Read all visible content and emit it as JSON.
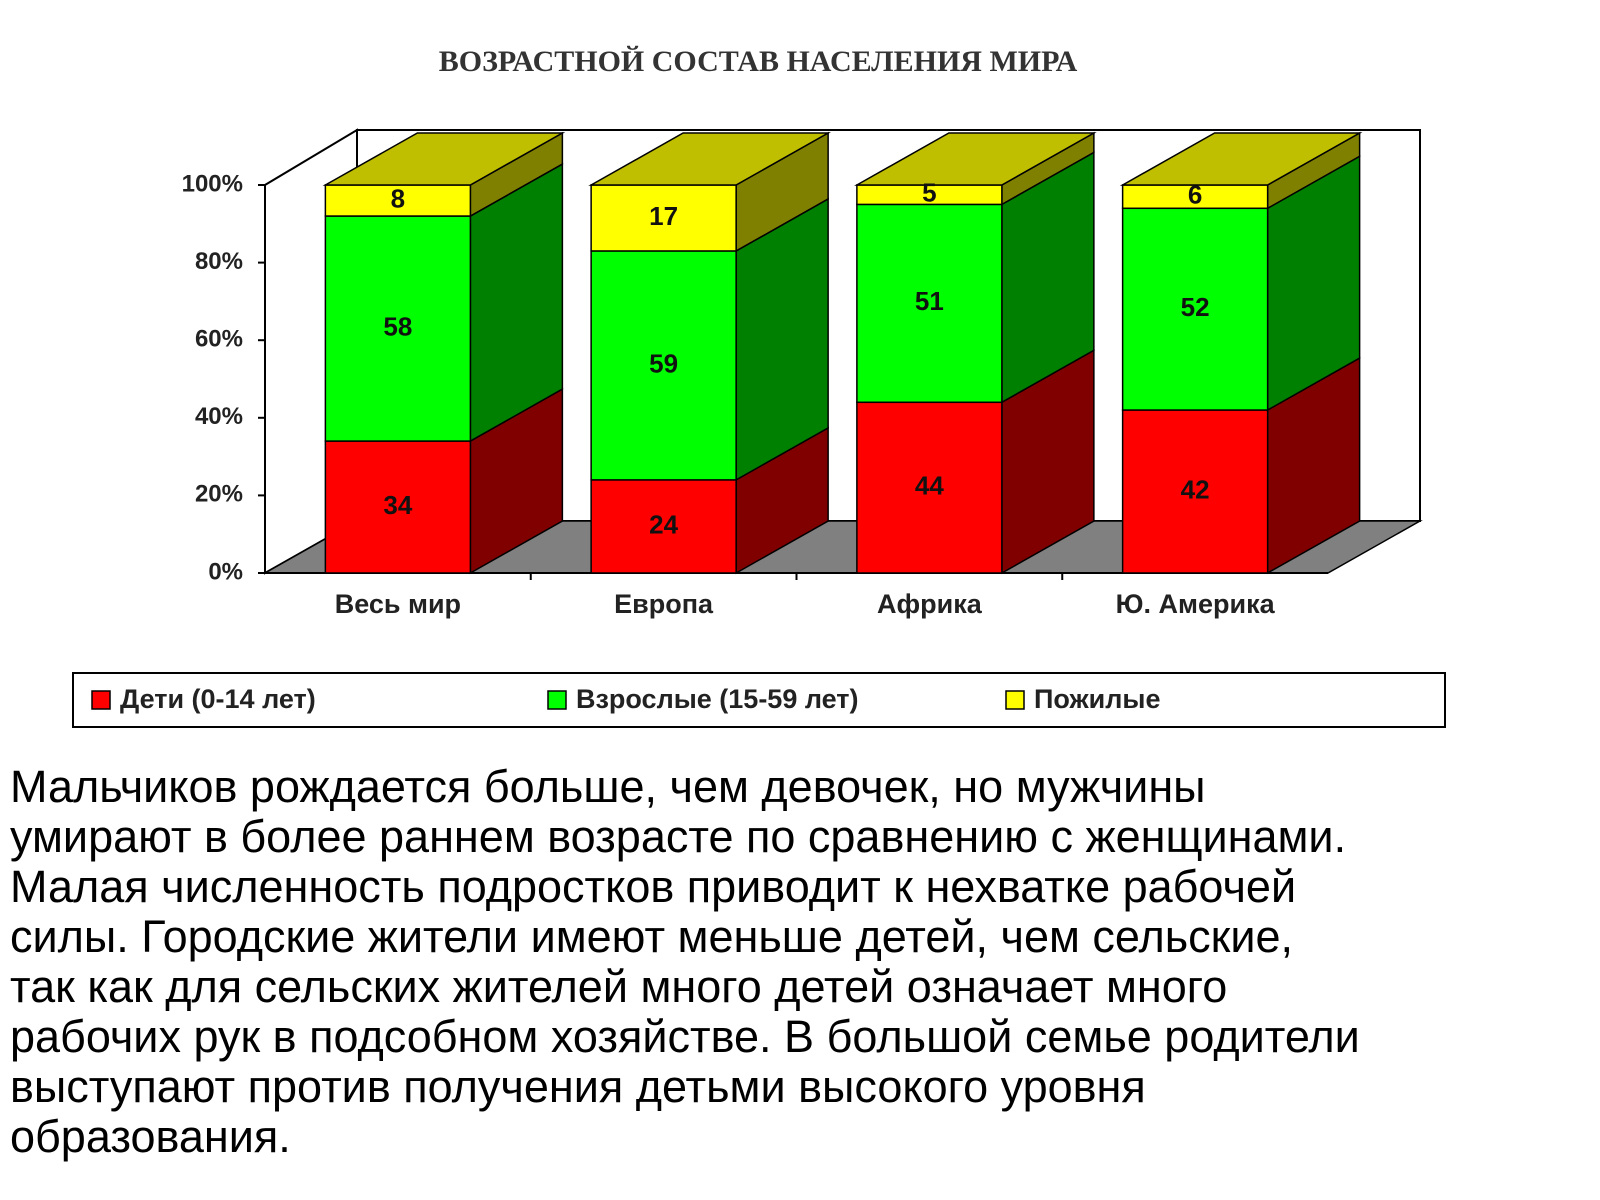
{
  "chart_data": {
    "type": "bar",
    "stacked": true,
    "three_d": true,
    "title": "ВОЗРАСТНОЙ СОСТАВ НАСЕЛЕНИЯ МИРА",
    "categories": [
      "Весь мир",
      "Европа",
      "Африка",
      "Ю. Америка"
    ],
    "series": [
      {
        "name": "Дети (0-14 лет)",
        "color": "#ff0000",
        "values": [
          34,
          24,
          44,
          42
        ]
      },
      {
        "name": "Взрослые (15-59 лет)",
        "color": "#00ff00",
        "values": [
          58,
          59,
          51,
          52
        ]
      },
      {
        "name": "Пожилые",
        "color": "#ffff00",
        "values": [
          8,
          17,
          5,
          6
        ]
      }
    ],
    "ylim": [
      0,
      100
    ],
    "yticks": [
      {
        "value": 0,
        "label": "0%"
      },
      {
        "value": 20,
        "label": "20%"
      },
      {
        "value": 40,
        "label": "40%"
      },
      {
        "value": 60,
        "label": "60%"
      },
      {
        "value": 80,
        "label": "80%"
      },
      {
        "value": 100,
        "label": "100%"
      }
    ],
    "legend": "bottom"
  },
  "paragraph": [
    "Мальчиков рождается больше, чем девочек, но мужчины",
    "умирают в более раннем возрасте по сравнению с женщинами.",
    "Малая численность подростков приводит к нехватке рабочей",
    "силы. Городские жители имеют меньше детей, чем сельские,",
    "так как для сельских жителей много детей означает много",
    "рабочих рук в подсобном хозяйстве. В большой семье родители",
    "выступают против получения детьми высокого уровня",
    "образования."
  ]
}
